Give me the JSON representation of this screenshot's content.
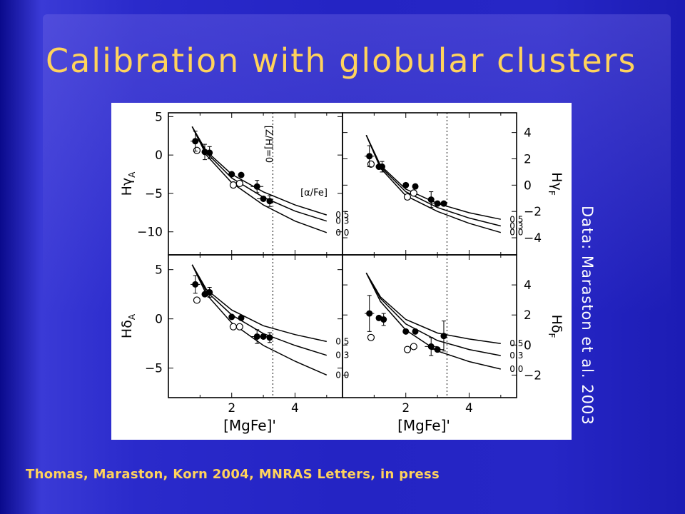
{
  "slide": {
    "title": "Calibration with globular clusters",
    "side_credit": "Data: Maraston et al. 2003",
    "citation": "Thomas, Maraston, Korn 2004, MNRAS Letters, in press"
  },
  "colors": {
    "title": "#ffd35c",
    "credit": "#ffffff",
    "background": "#2424c4"
  },
  "chart_data": [
    {
      "type": "line",
      "panel": "top-left",
      "ylabel": "Hγ_A",
      "xlabel": "",
      "xlim": [
        0,
        5.5
      ],
      "ylim": [
        -13,
        5.5
      ],
      "yticks": [
        5,
        0,
        -5,
        -10
      ],
      "tick_side": "left",
      "vline_x": 3.3,
      "vline_label": "[Z/H]=0",
      "legend_title": "[α/Fe]",
      "series": [
        {
          "name": "0.5",
          "x": [
            0.75,
            1.2,
            2.0,
            3.0,
            4.0,
            5.0
          ],
          "y": [
            3.7,
            0.5,
            -2.5,
            -4.8,
            -6.5,
            -7.8
          ]
        },
        {
          "name": "0.3",
          "x": [
            0.75,
            1.2,
            2.0,
            3.0,
            4.0,
            5.0
          ],
          "y": [
            3.7,
            0.3,
            -3.0,
            -5.5,
            -7.3,
            -8.6
          ]
        },
        {
          "name": "0.0",
          "x": [
            0.75,
            1.2,
            2.0,
            3.0,
            4.0,
            5.0
          ],
          "y": [
            3.7,
            0.0,
            -3.6,
            -6.5,
            -8.6,
            -10.1
          ]
        }
      ],
      "points_filled": [
        {
          "x": 0.85,
          "y": 1.8,
          "yerr": 1.3,
          "xerr": 0.15
        },
        {
          "x": 1.15,
          "y": 0.4,
          "yerr": 1.0
        },
        {
          "x": 1.3,
          "y": 0.3,
          "yerr": 0.8
        },
        {
          "x": 2.0,
          "y": -2.5
        },
        {
          "x": 2.3,
          "y": -2.6
        },
        {
          "x": 2.8,
          "y": -4.1,
          "yerr": 0.8,
          "xerr": 0.2
        },
        {
          "x": 3.0,
          "y": -5.7,
          "xerr": 0.2
        },
        {
          "x": 3.2,
          "y": -6.0,
          "yerr": 0.7
        }
      ],
      "points_open": [
        {
          "x": 0.9,
          "y": 0.6
        },
        {
          "x": 2.05,
          "y": -3.9
        },
        {
          "x": 2.25,
          "y": -3.7
        }
      ]
    },
    {
      "type": "line",
      "panel": "top-right",
      "ylabel": "Hγ_F",
      "xlabel": "",
      "xlim": [
        0,
        5.5
      ],
      "ylim": [
        -5.3,
        5.5
      ],
      "yticks": [
        4,
        2,
        0,
        -2,
        -4
      ],
      "tick_side": "right",
      "vline_x": 3.3,
      "series": [
        {
          "name": "0.5",
          "x": [
            0.75,
            1.2,
            2.0,
            3.0,
            4.0,
            5.0
          ],
          "y": [
            3.8,
            1.5,
            -0.3,
            -1.4,
            -2.1,
            -2.6
          ]
        },
        {
          "name": "0.3",
          "x": [
            0.75,
            1.2,
            2.0,
            3.0,
            4.0,
            5.0
          ],
          "y": [
            3.8,
            1.4,
            -0.5,
            -1.7,
            -2.5,
            -3.1
          ]
        },
        {
          "name": "0.0",
          "x": [
            0.75,
            1.2,
            2.0,
            3.0,
            4.0,
            5.0
          ],
          "y": [
            3.8,
            1.3,
            -0.8,
            -2.0,
            -2.9,
            -3.6
          ]
        }
      ],
      "points_filled": [
        {
          "x": 0.85,
          "y": 2.2,
          "yerr": 0.8,
          "xerr": 0.15
        },
        {
          "x": 1.15,
          "y": 1.4
        },
        {
          "x": 1.25,
          "y": 1.4,
          "yerr": 0.4
        },
        {
          "x": 2.0,
          "y": 0.0
        },
        {
          "x": 2.3,
          "y": -0.1
        },
        {
          "x": 2.8,
          "y": -1.1,
          "yerr": 0.6
        },
        {
          "x": 3.0,
          "y": -1.4,
          "xerr": 0.2
        },
        {
          "x": 3.2,
          "y": -1.4
        }
      ],
      "points_open": [
        {
          "x": 0.9,
          "y": 1.6
        },
        {
          "x": 2.05,
          "y": -0.9
        },
        {
          "x": 2.25,
          "y": -0.6
        }
      ]
    },
    {
      "type": "line",
      "panel": "bottom-left",
      "ylabel": "Hδ_A",
      "xlabel": "[MgFe]'",
      "xlim": [
        0,
        5.5
      ],
      "ylim": [
        -8,
        6.5
      ],
      "yticks": [
        5,
        0,
        -5
      ],
      "xticks": [
        2,
        4
      ],
      "tick_side": "left",
      "vline_x": 3.3,
      "series": [
        {
          "name": "0.5",
          "x": [
            0.75,
            1.2,
            2.0,
            3.0,
            4.0,
            5.0
          ],
          "y": [
            5.5,
            3.0,
            0.9,
            -0.7,
            -1.6,
            -2.3
          ]
        },
        {
          "name": "0.3",
          "x": [
            0.75,
            1.2,
            2.0,
            3.0,
            4.0,
            5.0
          ],
          "y": [
            5.5,
            2.8,
            0.4,
            -1.5,
            -2.7,
            -3.7
          ]
        },
        {
          "name": "0.0",
          "x": [
            0.75,
            1.2,
            2.0,
            3.0,
            4.0,
            5.0
          ],
          "y": [
            5.5,
            2.5,
            -0.4,
            -2.7,
            -4.3,
            -5.7
          ]
        }
      ],
      "points_filled": [
        {
          "x": 0.85,
          "y": 3.5,
          "yerr": 0.9,
          "xerr": 0.15
        },
        {
          "x": 1.15,
          "y": 2.5
        },
        {
          "x": 1.3,
          "y": 2.7,
          "yerr": 0.5
        },
        {
          "x": 2.0,
          "y": 0.2
        },
        {
          "x": 2.3,
          "y": 0.1
        },
        {
          "x": 2.8,
          "y": -1.8,
          "yerr": 0.7,
          "xerr": 0.2
        },
        {
          "x": 3.0,
          "y": -1.8,
          "xerr": 0.2
        },
        {
          "x": 3.2,
          "y": -1.9,
          "yerr": 0.5
        }
      ],
      "points_open": [
        {
          "x": 0.9,
          "y": 1.9
        },
        {
          "x": 2.05,
          "y": -0.8
        },
        {
          "x": 2.25,
          "y": -0.8
        }
      ]
    },
    {
      "type": "line",
      "panel": "bottom-right",
      "ylabel": "Hδ_F",
      "xlabel": "[MgFe]'",
      "xlim": [
        0,
        5.5
      ],
      "ylim": [
        -3.5,
        6
      ],
      "yticks": [
        4,
        2,
        0,
        -2
      ],
      "xticks": [
        2,
        4
      ],
      "tick_side": "right",
      "vline_x": 3.3,
      "series": [
        {
          "name": "0.5",
          "x": [
            0.75,
            1.2,
            2.0,
            3.0,
            4.0,
            5.0
          ],
          "y": [
            4.8,
            3.2,
            1.7,
            0.8,
            0.4,
            0.1
          ]
        },
        {
          "name": "0.3",
          "x": [
            0.75,
            1.2,
            2.0,
            3.0,
            4.0,
            5.0
          ],
          "y": [
            4.8,
            3.1,
            1.4,
            0.3,
            -0.3,
            -0.7
          ]
        },
        {
          "name": "0.0",
          "x": [
            0.75,
            1.2,
            2.0,
            3.0,
            4.0,
            5.0
          ],
          "y": [
            4.8,
            2.9,
            1.0,
            -0.4,
            -1.1,
            -1.6
          ]
        }
      ],
      "points_filled": [
        {
          "x": 0.85,
          "y": 2.1,
          "yerr": 1.2,
          "xerr": 0.15
        },
        {
          "x": 1.15,
          "y": 1.8
        },
        {
          "x": 1.3,
          "y": 1.7,
          "yerr": 0.4
        },
        {
          "x": 2.0,
          "y": 0.9
        },
        {
          "x": 2.3,
          "y": 0.9
        },
        {
          "x": 2.8,
          "y": -0.1,
          "yerr": 0.6,
          "xerr": 0.2
        },
        {
          "x": 3.0,
          "y": -0.3,
          "xerr": 0.2
        },
        {
          "x": 3.2,
          "y": 0.6,
          "yerr": 1.0
        }
      ],
      "points_open": [
        {
          "x": 0.9,
          "y": 0.5
        },
        {
          "x": 2.05,
          "y": -0.3
        },
        {
          "x": 2.25,
          "y": -0.1
        }
      ]
    }
  ]
}
